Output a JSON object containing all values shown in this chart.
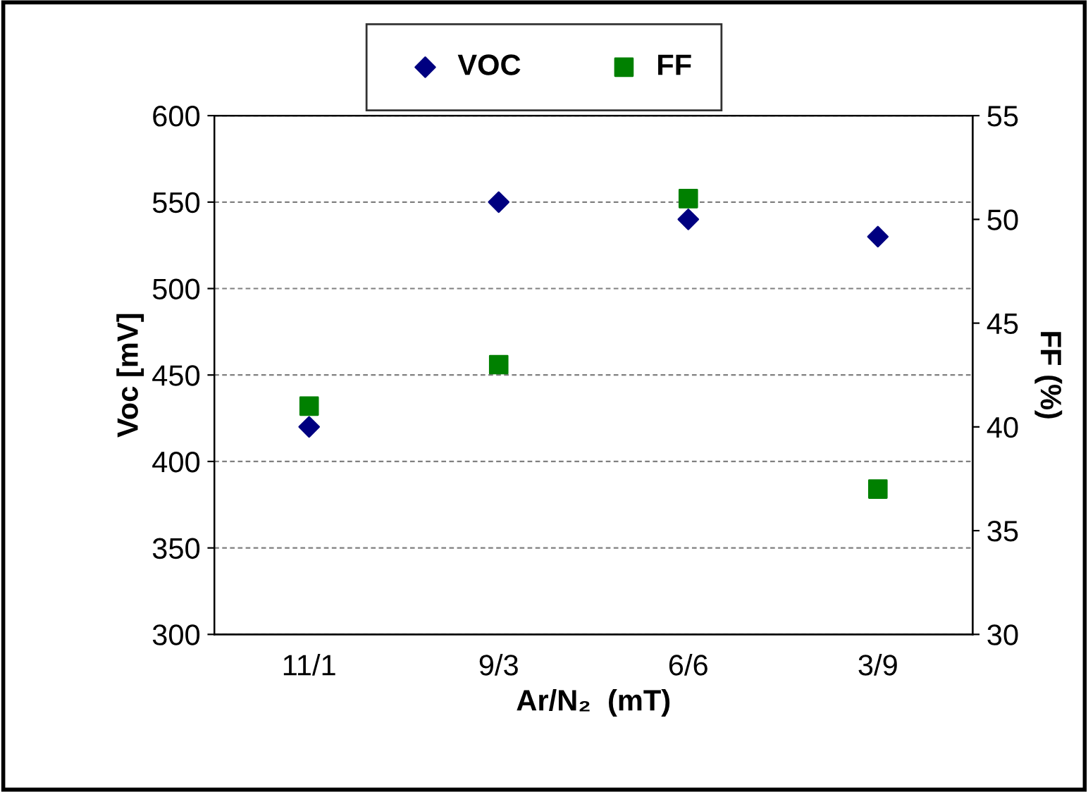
{
  "chart_data": {
    "type": "scatter",
    "xlabel": "Ar/N₂  (mT)",
    "ylabel": "Voc [mV]",
    "y2label": "FF (%)",
    "categories": [
      "11/1",
      "9/3",
      "6/6",
      "3/9"
    ],
    "series": [
      {
        "name": "VOC",
        "color": "#000080",
        "marker": "diamond",
        "values": [
          420,
          550,
          540,
          530
        ]
      },
      {
        "name": "FF",
        "color": "#008000",
        "marker": "square",
        "axis": "y2",
        "values": [
          41,
          43,
          51,
          37
        ]
      }
    ],
    "ylim": [
      300,
      600
    ],
    "yticks": [
      300,
      350,
      400,
      450,
      500,
      550,
      600
    ],
    "y2lim": [
      30,
      55
    ],
    "y2ticks": [
      30,
      35,
      40,
      45,
      50,
      55
    ],
    "grid": "y",
    "legend": "top"
  }
}
